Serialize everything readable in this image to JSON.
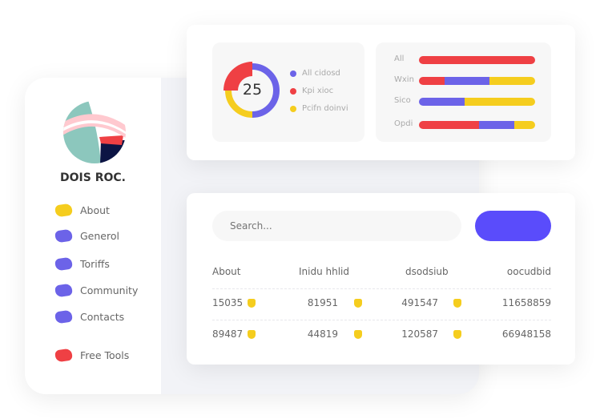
{
  "sidebar": {
    "brand": "DOIS ROC.",
    "items": [
      {
        "label": "About",
        "color": "#f5cd1e"
      },
      {
        "label": "Generol",
        "color": "#6c63e8"
      },
      {
        "label": "Toriffs",
        "color": "#6c63e8"
      },
      {
        "label": "Community",
        "color": "#6c63e8"
      },
      {
        "label": "Contacts",
        "color": "#6c63e8"
      },
      {
        "label": "Free Tools",
        "color": "#ef4044"
      }
    ]
  },
  "donut": {
    "value": "25",
    "legend": [
      {
        "label": "All cidosd",
        "color": "#6c63e8"
      },
      {
        "label": "Kpi xioc",
        "color": "#ef4044"
      },
      {
        "label": "Pcifn doinvi",
        "color": "#f5cd1e"
      }
    ],
    "segments": [
      {
        "color": "#6c63e8",
        "pct": 50
      },
      {
        "color": "#f5cd1e",
        "pct": 25
      },
      {
        "color": "#ef4044",
        "pct": 25
      }
    ]
  },
  "bars": [
    {
      "label": "All",
      "segments": [
        {
          "color": "#ef4044",
          "pct": 100
        }
      ]
    },
    {
      "label": "Wxin",
      "segments": [
        {
          "color": "#ef4044",
          "pct": 22
        },
        {
          "color": "#6c63e8",
          "pct": 39
        },
        {
          "color": "#f5cd1e",
          "pct": 39
        }
      ]
    },
    {
      "label": "Sico",
      "segments": [
        {
          "color": "#6c63e8",
          "pct": 39
        },
        {
          "color": "#f5cd1e",
          "pct": 61
        }
      ]
    },
    {
      "label": "Opdi",
      "segments": [
        {
          "color": "#ef4044",
          "pct": 52
        },
        {
          "color": "#6c63e8",
          "pct": 30
        },
        {
          "color": "#f5cd1e",
          "pct": 18
        }
      ]
    }
  ],
  "search": {
    "placeholder": "Search..."
  },
  "table": {
    "headers": [
      "About",
      "Inidu hhlid",
      "dsodsiub",
      "oocudbid"
    ],
    "rows": [
      [
        "15035",
        "81951",
        "491547",
        "11658859"
      ],
      [
        "89487",
        "44819",
        "120587",
        "66948158"
      ]
    ]
  }
}
